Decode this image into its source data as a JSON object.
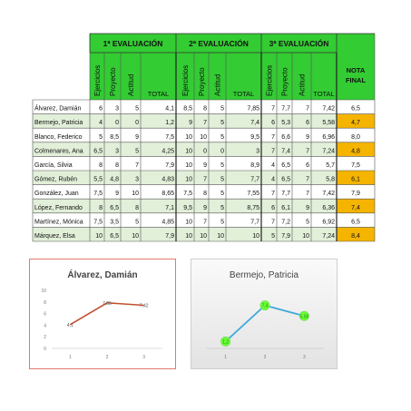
{
  "sheet": {
    "evaluations": [
      "1ª EVALUACIÓN",
      "2ª EVALUACIÓN",
      "3ª EVALUACIÓN"
    ],
    "sub_headers": [
      "Ejercicios",
      "Proyecto",
      "Actitud"
    ],
    "total_label": "TOTAL",
    "final_label_line1": "NOTA",
    "final_label_line2": "FINAL",
    "rows": [
      {
        "name": "Álvarez, Damián",
        "e1": [
          "6",
          "3",
          "5",
          "4,1"
        ],
        "e2": [
          "8,5",
          "8",
          "5",
          "7,85"
        ],
        "e3": [
          "7",
          "7,7",
          "7",
          "7,42"
        ],
        "final": "6,5",
        "highlight": false
      },
      {
        "name": "Bermejo, Patricia",
        "e1": [
          "4",
          "0",
          "0",
          "1,2"
        ],
        "e2": [
          "9",
          "7",
          "5",
          "7,4"
        ],
        "e3": [
          "6",
          "5,3",
          "6",
          "5,58"
        ],
        "final": "4,7",
        "highlight": true
      },
      {
        "name": "Blanco, Federico",
        "e1": [
          "5",
          "8,5",
          "9",
          "7,5"
        ],
        "e2": [
          "10",
          "10",
          "5",
          "9,5"
        ],
        "e3": [
          "7",
          "6,6",
          "9",
          "6,96"
        ],
        "final": "8,0",
        "highlight": false
      },
      {
        "name": "Colmenares, Ana",
        "e1": [
          "6,5",
          "3",
          "5",
          "4,25"
        ],
        "e2": [
          "10",
          "0",
          "0",
          "3"
        ],
        "e3": [
          "7",
          "7,4",
          "7",
          "7,24"
        ],
        "final": "4,8",
        "highlight": true
      },
      {
        "name": "García, Silvia",
        "e1": [
          "8",
          "8",
          "7",
          "7,9"
        ],
        "e2": [
          "10",
          "9",
          "5",
          "8,9"
        ],
        "e3": [
          "4",
          "6,5",
          "6",
          "5,7"
        ],
        "final": "7,5",
        "highlight": false
      },
      {
        "name": "Gómez, Rubén",
        "e1": [
          "5,5",
          "4,8",
          "3",
          "4,83"
        ],
        "e2": [
          "10",
          "7",
          "5",
          "7,7"
        ],
        "e3": [
          "4",
          "6,5",
          "7",
          "5,8"
        ],
        "final": "6,1",
        "highlight": true
      },
      {
        "name": "González, Juan",
        "e1": [
          "7,5",
          "9",
          "10",
          "8,65"
        ],
        "e2": [
          "7,5",
          "8",
          "5",
          "7,55"
        ],
        "e3": [
          "7",
          "7,7",
          "7",
          "7,42"
        ],
        "final": "7,9",
        "highlight": false
      },
      {
        "name": "López, Fernando",
        "e1": [
          "8",
          "6,5",
          "8",
          "7,1"
        ],
        "e2": [
          "9,5",
          "9",
          "5",
          "8,75"
        ],
        "e3": [
          "6",
          "6,1",
          "9",
          "6,36"
        ],
        "final": "7,4",
        "highlight": true
      },
      {
        "name": "Martínez, Mónica",
        "e1": [
          "7,5",
          "3,5",
          "5",
          "4,85"
        ],
        "e2": [
          "10",
          "7",
          "5",
          "7,7"
        ],
        "e3": [
          "7",
          "7,2",
          "5",
          "6,92"
        ],
        "final": "6,5",
        "highlight": false
      },
      {
        "name": "Márquez, Elsa",
        "e1": [
          "10",
          "6,5",
          "10",
          "7,9"
        ],
        "e2": [
          "10",
          "10",
          "10",
          "10"
        ],
        "e3": [
          "5",
          "7,9",
          "10",
          "7,24"
        ],
        "final": "8,4",
        "highlight": true
      }
    ]
  },
  "colors": {
    "header_green": "#33cc33",
    "row_green": "#e2efd9",
    "final_orange": "#f4b400",
    "line_red": "#c0502e",
    "line_blue": "#3fa9d8",
    "marker_green": "#66ff33"
  },
  "chart_data": [
    {
      "type": "line",
      "title": "Álvarez, Damián",
      "categories": [
        "1",
        "2",
        "3"
      ],
      "values": [
        4.1,
        7.85,
        7.42
      ],
      "data_labels": [
        "4,1",
        "7,85",
        "7,42"
      ],
      "ylim": [
        0,
        10
      ],
      "yticks": [
        "0",
        "2",
        "4",
        "6",
        "8",
        "10"
      ],
      "grid": false
    },
    {
      "type": "line",
      "title": "Bermejo, Patricia",
      "categories": [
        "1",
        "2",
        "3"
      ],
      "values": [
        1.2,
        7.4,
        5.58
      ],
      "data_labels": [
        "1,2",
        "7,4",
        "5,58"
      ],
      "ylim": [
        0,
        10
      ],
      "grid": false
    }
  ]
}
